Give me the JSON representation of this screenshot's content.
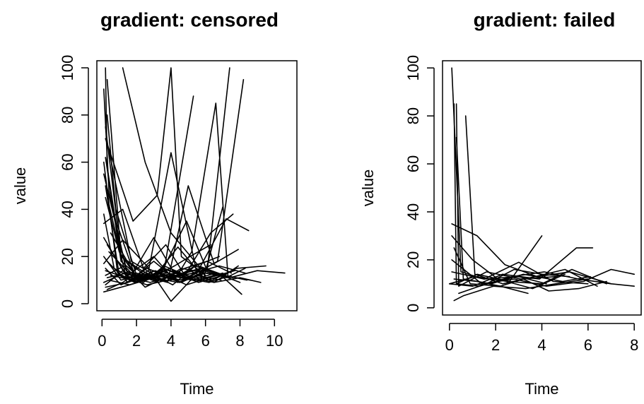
{
  "chart_data": [
    {
      "type": "line",
      "title": "gradient: censored",
      "xlabel": "Time",
      "ylabel": "value",
      "xlim": [
        -0.3,
        11.3
      ],
      "ylim": [
        -3,
        103
      ],
      "xticks": [
        0,
        2,
        4,
        6,
        8,
        10
      ],
      "yticks": [
        0,
        20,
        40,
        60,
        80,
        100
      ],
      "grid": false,
      "legend": "none",
      "series": [
        {
          "x": [
            0.2,
            0.3,
            1.1,
            2.5,
            3.8
          ],
          "y": [
            100,
            58,
            20,
            12,
            13
          ]
        },
        {
          "x": [
            0.1,
            0.4,
            1.4,
            2.6,
            4.2,
            5.1,
            6.3
          ],
          "y": [
            91,
            48,
            14,
            10,
            16,
            20,
            25
          ]
        },
        {
          "x": [
            0.3,
            0.8,
            2.0,
            3.0,
            4.5,
            5.8
          ],
          "y": [
            80,
            40,
            12,
            18,
            9,
            15
          ]
        },
        {
          "x": [
            1.2,
            2.5,
            4.0,
            5.6,
            7.1,
            8.4
          ],
          "y": [
            100,
            60,
            30,
            16,
            12,
            10
          ]
        },
        {
          "x": [
            0.2,
            1.8,
            3.2,
            4.0,
            4.6,
            6.0
          ],
          "y": [
            70,
            35,
            46,
            100,
            20,
            12
          ]
        },
        {
          "x": [
            0.5,
            2.1,
            3.6,
            5.3
          ],
          "y": [
            30,
            10,
            14,
            88
          ]
        },
        {
          "x": [
            0.1,
            1.5,
            3.0,
            4.2,
            5.2,
            6.6,
            7.3
          ],
          "y": [
            55,
            12,
            20,
            10,
            22,
            85,
            12
          ]
        },
        {
          "x": [
            0.4,
            1.7,
            3.3,
            4.9,
            6.1,
            7.4
          ],
          "y": [
            65,
            18,
            11,
            35,
            14,
            100
          ]
        },
        {
          "x": [
            0.2,
            1.0,
            2.2,
            3.5,
            5.0,
            6.7,
            8.2
          ],
          "y": [
            45,
            22,
            9,
            15,
            11,
            18,
            95
          ]
        },
        {
          "x": [
            0.1,
            1.2,
            2.4,
            3.7,
            4.8,
            6.3,
            7.6
          ],
          "y": [
            34,
            40,
            15,
            25,
            12,
            30,
            38
          ]
        },
        {
          "x": [
            0.3,
            1.6,
            2.7,
            4.0,
            5.5,
            7.2,
            8.5
          ],
          "y": [
            25,
            10,
            14,
            64,
            13,
            36,
            31
          ]
        },
        {
          "x": [
            0.2,
            1.1,
            2.3,
            3.8,
            5.0,
            6.5,
            7.9
          ],
          "y": [
            15,
            8,
            12,
            9,
            50,
            17,
            23
          ]
        },
        {
          "x": [
            0.1,
            0.9,
            2.0,
            3.2,
            4.4,
            5.9,
            7.0
          ],
          "y": [
            60,
            13,
            9,
            13,
            24,
            11,
            41
          ]
        },
        {
          "x": [
            0.4,
            1.4,
            2.8,
            4.1,
            5.4,
            6.9,
            8.1
          ],
          "y": [
            42,
            11,
            13,
            8,
            16,
            12,
            4
          ]
        },
        {
          "x": [
            0.2,
            1.3,
            2.5,
            3.9,
            5.2,
            6.6,
            8.0
          ],
          "y": [
            12,
            16,
            7,
            12,
            10,
            13,
            9
          ]
        },
        {
          "x": [
            0.1,
            1.0,
            2.2,
            3.4,
            4.7,
            6.2,
            7.5
          ],
          "y": [
            9,
            12,
            10,
            14,
            11,
            9,
            12
          ]
        },
        {
          "x": [
            0.3,
            1.5,
            2.6,
            4.0,
            5.3,
            6.8,
            8.3
          ],
          "y": [
            18,
            9,
            15,
            11,
            13,
            16,
            13
          ]
        },
        {
          "x": [
            0.2,
            1.2,
            2.4,
            3.6,
            4.9,
            6.4,
            7.8,
            9.5
          ],
          "y": [
            8,
            14,
            9,
            16,
            12,
            10,
            15,
            16
          ]
        },
        {
          "x": [
            0.1,
            1.1,
            2.1,
            3.3,
            4.6,
            6.0,
            7.4,
            9.0,
            10.6
          ],
          "y": [
            20,
            10,
            12,
            9,
            15,
            13,
            11,
            14,
            13
          ]
        },
        {
          "x": [
            0.4,
            1.6,
            2.9,
            4.2,
            5.6,
            7.0,
            8.6
          ],
          "y": [
            10,
            8,
            11,
            13,
            9,
            12,
            10
          ]
        },
        {
          "x": [
            0.2,
            1.4,
            2.6,
            3.8,
            5.1,
            6.5,
            8.0,
            9.2
          ],
          "y": [
            14,
            11,
            8,
            10,
            14,
            9,
            11,
            9
          ]
        },
        {
          "x": [
            0.3,
            1.2,
            2.0,
            3.1,
            4.3,
            5.7,
            7.1
          ],
          "y": [
            6,
            9,
            13,
            10,
            12,
            15,
            12
          ]
        },
        {
          "x": [
            0.1,
            1.3,
            2.5,
            3.7,
            4.9,
            6.2,
            7.7
          ],
          "y": [
            28,
            13,
            10,
            12,
            8,
            11,
            14
          ]
        },
        {
          "x": [
            0.2,
            1.0,
            1.9,
            3.0,
            4.0,
            5.4,
            6.8
          ],
          "y": [
            50,
            12,
            9,
            14,
            10,
            16,
            20
          ]
        },
        {
          "x": [
            0.5,
            1.8,
            3.1,
            4.5,
            6.0,
            7.6
          ],
          "y": [
            12,
            10,
            14,
            9,
            13,
            11
          ]
        },
        {
          "x": [
            0.1,
            0.7,
            1.7,
            2.8,
            4.1,
            5.5,
            7.0
          ],
          "y": [
            38,
            15,
            11,
            9,
            12,
            10,
            13
          ]
        },
        {
          "x": [
            0.2,
            1.5,
            2.7,
            4.0,
            5.3,
            6.7
          ],
          "y": [
            7,
            9,
            12,
            11,
            14,
            12
          ]
        },
        {
          "x": [
            0.3,
            1.1,
            2.3,
            3.5,
            4.8,
            6.1,
            7.5
          ],
          "y": [
            95,
            20,
            14,
            10,
            15,
            18,
            13
          ]
        },
        {
          "x": [
            0.1,
            1.6,
            3.0,
            4.4,
            5.9
          ],
          "y": [
            5,
            8,
            11,
            9,
            13
          ]
        },
        {
          "x": [
            0.2,
            0.9,
            2.0,
            3.3,
            4.6,
            6.0
          ],
          "y": [
            75,
            33,
            10,
            12,
            9,
            14
          ]
        },
        {
          "x": [
            0.4,
            1.7,
            3.0,
            4.1,
            5.2,
            6.5,
            7.9
          ],
          "y": [
            22,
            12,
            28,
            14,
            11,
            9,
            16
          ]
        },
        {
          "x": [
            0.1,
            1.2,
            2.6,
            4.0,
            5.4,
            6.9
          ],
          "y": [
            17,
            27,
            16,
            1,
            12,
            10
          ]
        },
        {
          "x": [
            0.3,
            1.4,
            2.5,
            3.6,
            4.7,
            5.9,
            7.2,
            8.3
          ],
          "y": [
            11,
            13,
            10,
            15,
            12,
            14,
            11,
            15
          ]
        },
        {
          "x": [
            0.2,
            1.1,
            2.2,
            3.4,
            4.5,
            5.7
          ],
          "y": [
            62,
            18,
            11,
            13,
            10,
            12
          ]
        }
      ]
    },
    {
      "type": "line",
      "title": "gradient: failed",
      "xlabel": "Time",
      "ylabel": "value",
      "xlim": [
        -0.3,
        8.3
      ],
      "ylim": [
        -3,
        103
      ],
      "xticks": [
        0,
        2,
        4,
        6,
        8
      ],
      "yticks": [
        0,
        20,
        40,
        60,
        80,
        100
      ],
      "grid": false,
      "legend": "none",
      "series": [
        {
          "x": [
            0.1,
            0.5,
            1.5,
            3.0,
            4.2
          ],
          "y": [
            100,
            15,
            12,
            13,
            10
          ]
        },
        {
          "x": [
            0.2,
            0.3,
            1.2,
            2.6,
            4.0
          ],
          "y": [
            85,
            10,
            14,
            11,
            30
          ]
        },
        {
          "x": [
            0.3,
            0.6,
            1.8,
            3.2,
            4.9,
            6.1
          ],
          "y": [
            71,
            12,
            10,
            14,
            11,
            13
          ]
        },
        {
          "x": [
            0.3,
            0.4,
            1.6,
            3.1,
            4.6
          ],
          "y": [
            85,
            9,
            15,
            12,
            13
          ]
        },
        {
          "x": [
            0.7,
            1.1,
            2.3,
            3.7,
            5.0,
            6.4
          ],
          "y": [
            80,
            14,
            10,
            13,
            16,
            9
          ]
        },
        {
          "x": [
            0.1,
            1.2,
            2.4,
            3.8,
            5.2,
            7.0,
            8.0
          ],
          "y": [
            35,
            30,
            18,
            13,
            15,
            10,
            9
          ]
        },
        {
          "x": [
            0.1,
            1.0,
            2.1,
            3.6,
            5.0
          ],
          "y": [
            30,
            20,
            12,
            8,
            14
          ]
        },
        {
          "x": [
            0.2,
            0.9,
            2.2,
            3.4
          ],
          "y": [
            25,
            10,
            9,
            6
          ]
        },
        {
          "x": [
            0.0,
            1.0,
            2.3,
            3.9,
            5.5,
            6.2
          ],
          "y": [
            10,
            9,
            14,
            12,
            25,
            25
          ]
        },
        {
          "x": [
            0.1,
            1.4,
            2.8,
            4.2,
            5.8,
            7.0,
            8.0
          ],
          "y": [
            20,
            10,
            12,
            9,
            11,
            16,
            14
          ]
        },
        {
          "x": [
            0.0,
            1.1,
            2.5,
            4.0,
            5.3,
            6.8
          ],
          "y": [
            10,
            13,
            11,
            10,
            16,
            10
          ]
        },
        {
          "x": [
            0.2,
            0.6,
            1.9,
            3.3,
            4.6,
            6.0
          ],
          "y": [
            3,
            5,
            9,
            8,
            10,
            12
          ]
        },
        {
          "x": [
            0.3,
            1.3,
            2.7,
            4.1,
            5.6,
            7.0
          ],
          "y": [
            10,
            9,
            13,
            15,
            12,
            10
          ]
        },
        {
          "x": [
            0.1,
            1.5,
            3.0,
            4.5,
            6.0
          ],
          "y": [
            15,
            12,
            19,
            11,
            10
          ]
        },
        {
          "x": [
            0.4,
            1.6,
            2.8,
            4.0,
            5.2
          ],
          "y": [
            6,
            10,
            16,
            14,
            13
          ]
        },
        {
          "x": [
            0.2,
            1.2,
            2.2,
            3.2,
            4.3,
            5.6,
            6.8
          ],
          "y": [
            12,
            11,
            9,
            12,
            7,
            8,
            11
          ]
        }
      ]
    }
  ]
}
